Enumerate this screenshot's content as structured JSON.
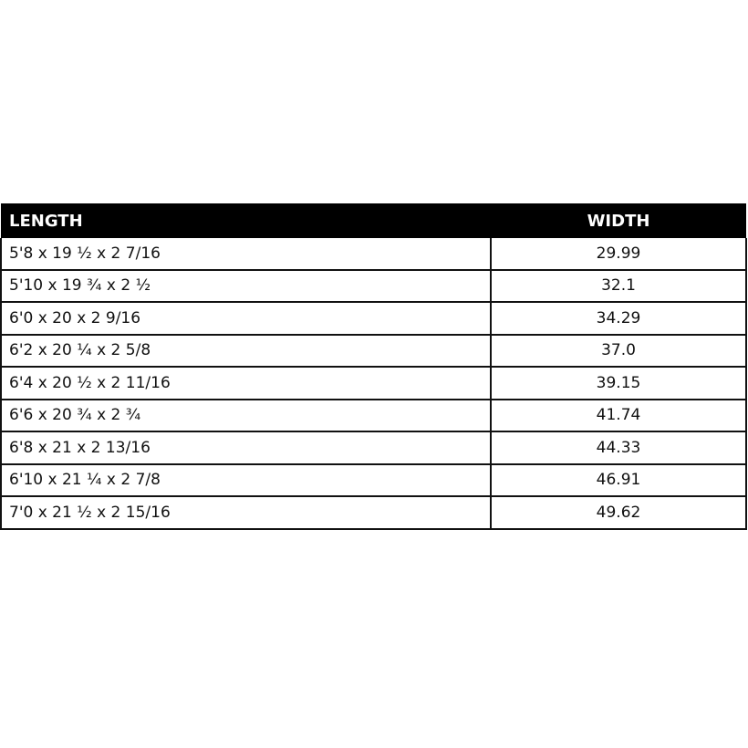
{
  "table": {
    "headers": {
      "length": "LENGTH",
      "width": "WIDTH"
    },
    "rows": [
      {
        "length": "5'8 x 19 ½ x 2 7/16",
        "width": "29.99"
      },
      {
        "length": "5'10 x 19 ¾  x 2 ½",
        "width": "32.1"
      },
      {
        "length": "6'0 x 20 x 2 9/16",
        "width": "34.29"
      },
      {
        "length": "6'2 x 20 ¼ x 2 5/8",
        "width": "37.0"
      },
      {
        "length": "6'4 x 20 ½ x 2 11/16",
        "width": "39.15"
      },
      {
        "length": "6'6 x 20 ¾ x 2 ¾",
        "width": "41.74"
      },
      {
        "length": "6'8 x 21 x 2 13/16",
        "width": "44.33"
      },
      {
        "length": "6'10 x 21 ¼ x 2 7/8",
        "width": "46.91"
      },
      {
        "length": "7'0 x 21 ½ x 2 15/16",
        "width": "49.62"
      }
    ]
  }
}
